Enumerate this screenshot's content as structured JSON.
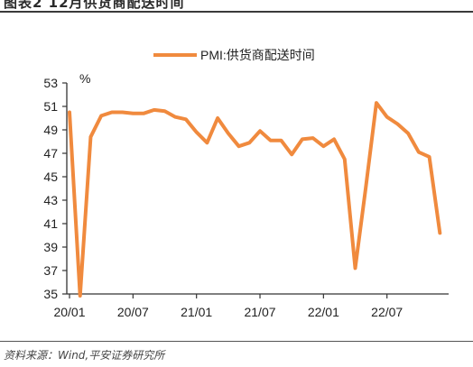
{
  "header": {
    "title": "图表2      12月供货商配送时间"
  },
  "chart_data": {
    "type": "line",
    "unit_label": "%",
    "legend_position": "top-center",
    "grid": false,
    "ylim": [
      35,
      53
    ],
    "y_ticks": [
      35,
      37,
      39,
      41,
      43,
      45,
      47,
      49,
      51,
      53
    ],
    "x_tick_labels": [
      "20/01",
      "20/07",
      "21/01",
      "21/07",
      "22/01",
      "22/07"
    ],
    "x_tick_index": [
      0,
      6,
      12,
      18,
      24,
      30
    ],
    "x": [
      "20/01",
      "20/02",
      "20/03",
      "20/04",
      "20/05",
      "20/06",
      "20/07",
      "20/08",
      "20/09",
      "20/10",
      "20/11",
      "20/12",
      "21/01",
      "21/02",
      "21/03",
      "21/04",
      "21/05",
      "21/06",
      "21/07",
      "21/08",
      "21/09",
      "21/10",
      "21/11",
      "21/12",
      "22/01",
      "22/02",
      "22/03",
      "22/04",
      "22/05",
      "22/06",
      "22/07",
      "22/08",
      "22/09",
      "22/10",
      "22/11",
      "22/12"
    ],
    "series": [
      {
        "name": "PMI:供货商配送时间",
        "color": "#f08a3e",
        "values": [
          50.5,
          32.1,
          48.4,
          50.2,
          50.5,
          50.5,
          50.4,
          50.4,
          50.7,
          50.6,
          50.1,
          49.9,
          48.8,
          47.9,
          50.0,
          48.7,
          47.6,
          47.9,
          48.9,
          48.1,
          48.1,
          46.9,
          48.2,
          48.3,
          47.6,
          48.2,
          46.5,
          37.2,
          44.1,
          51.3,
          50.1,
          49.5,
          48.7,
          47.1,
          46.7,
          40.2
        ]
      }
    ]
  },
  "footer": {
    "source": "资料来源：Wind,平安证券研究所"
  }
}
